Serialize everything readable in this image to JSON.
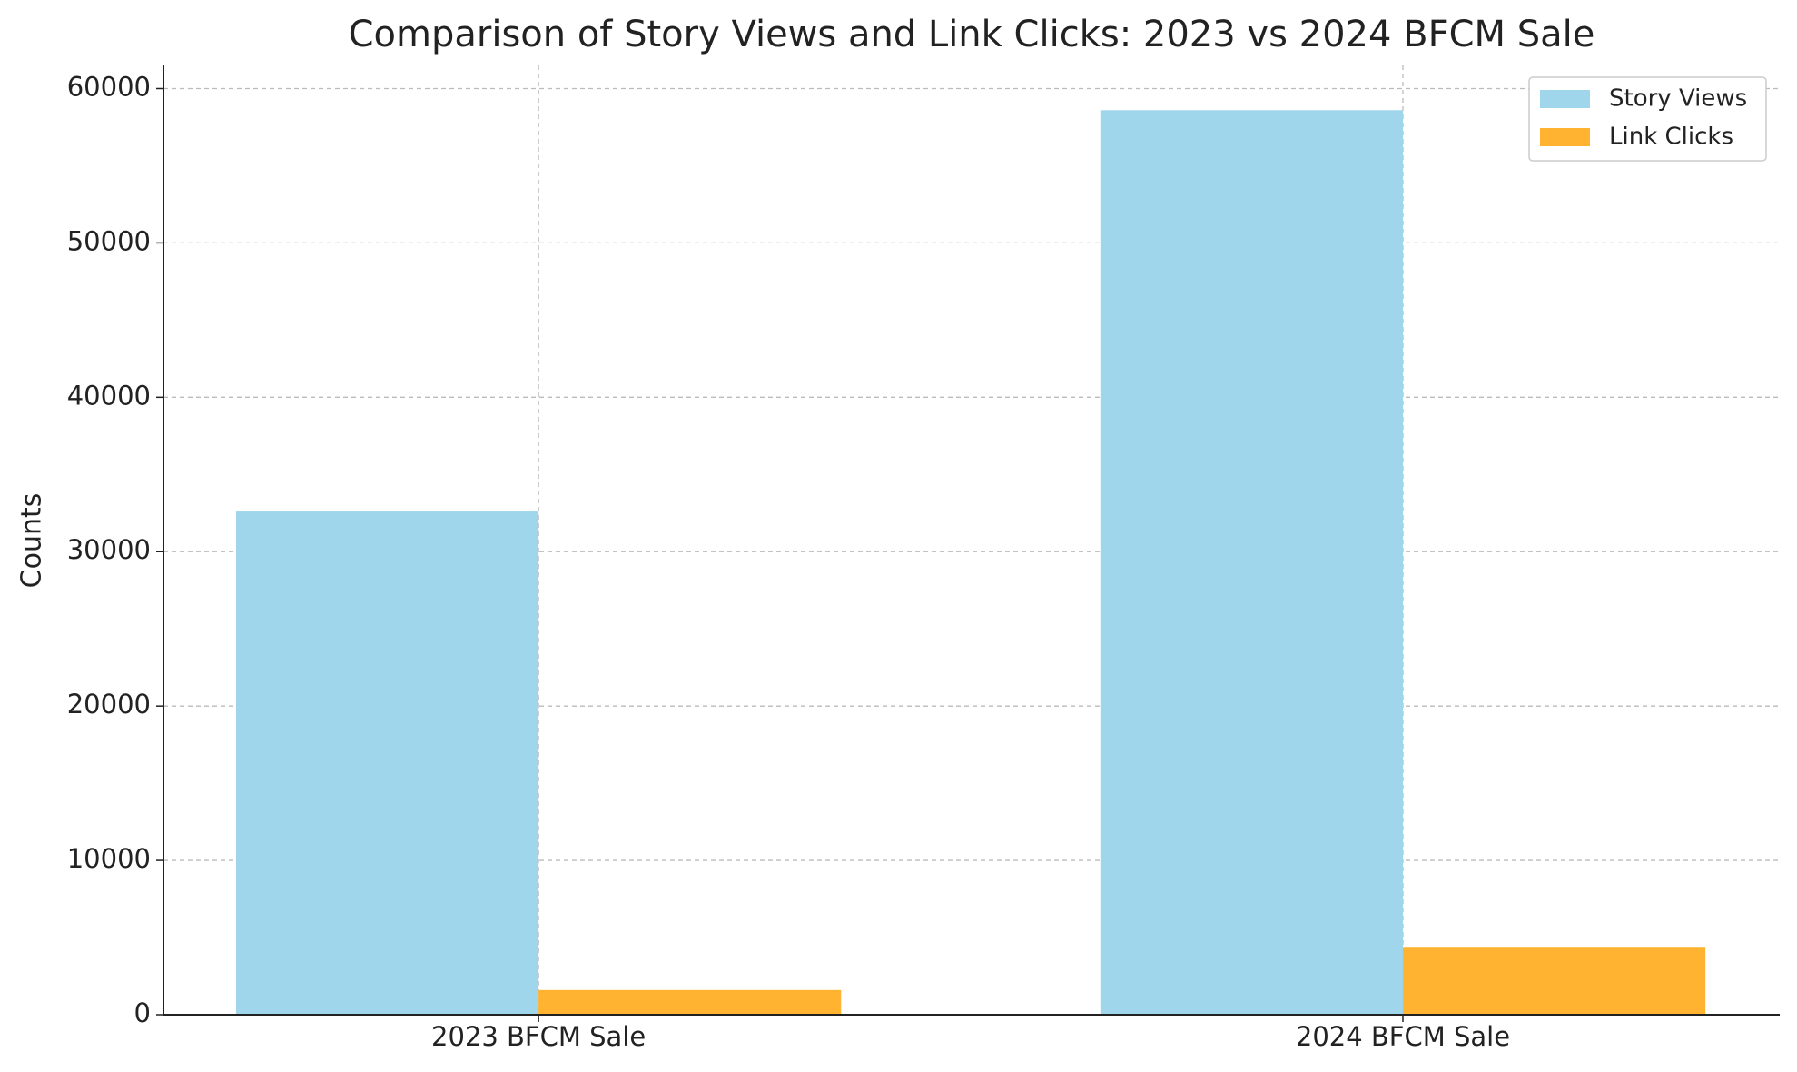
{
  "chart_data": {
    "type": "bar",
    "title": "Comparison of Story Views and Link Clicks: 2023 vs 2024 BFCM Sale",
    "y_label": "Counts",
    "categories": [
      "2023 BFCM Sale",
      "2024 BFCM Sale"
    ],
    "series": [
      {
        "name": "Story Views",
        "color": "#9fd6ec",
        "values": [
          32600,
          58600
        ]
      },
      {
        "name": "Link Clicks",
        "color": "#ffb331",
        "values": [
          1600,
          4400
        ]
      }
    ],
    "ylim": [
      0,
      61500
    ],
    "yticks": [
      0,
      10000,
      20000,
      30000,
      40000,
      50000,
      60000
    ],
    "grid": true,
    "legend": "upper right"
  }
}
